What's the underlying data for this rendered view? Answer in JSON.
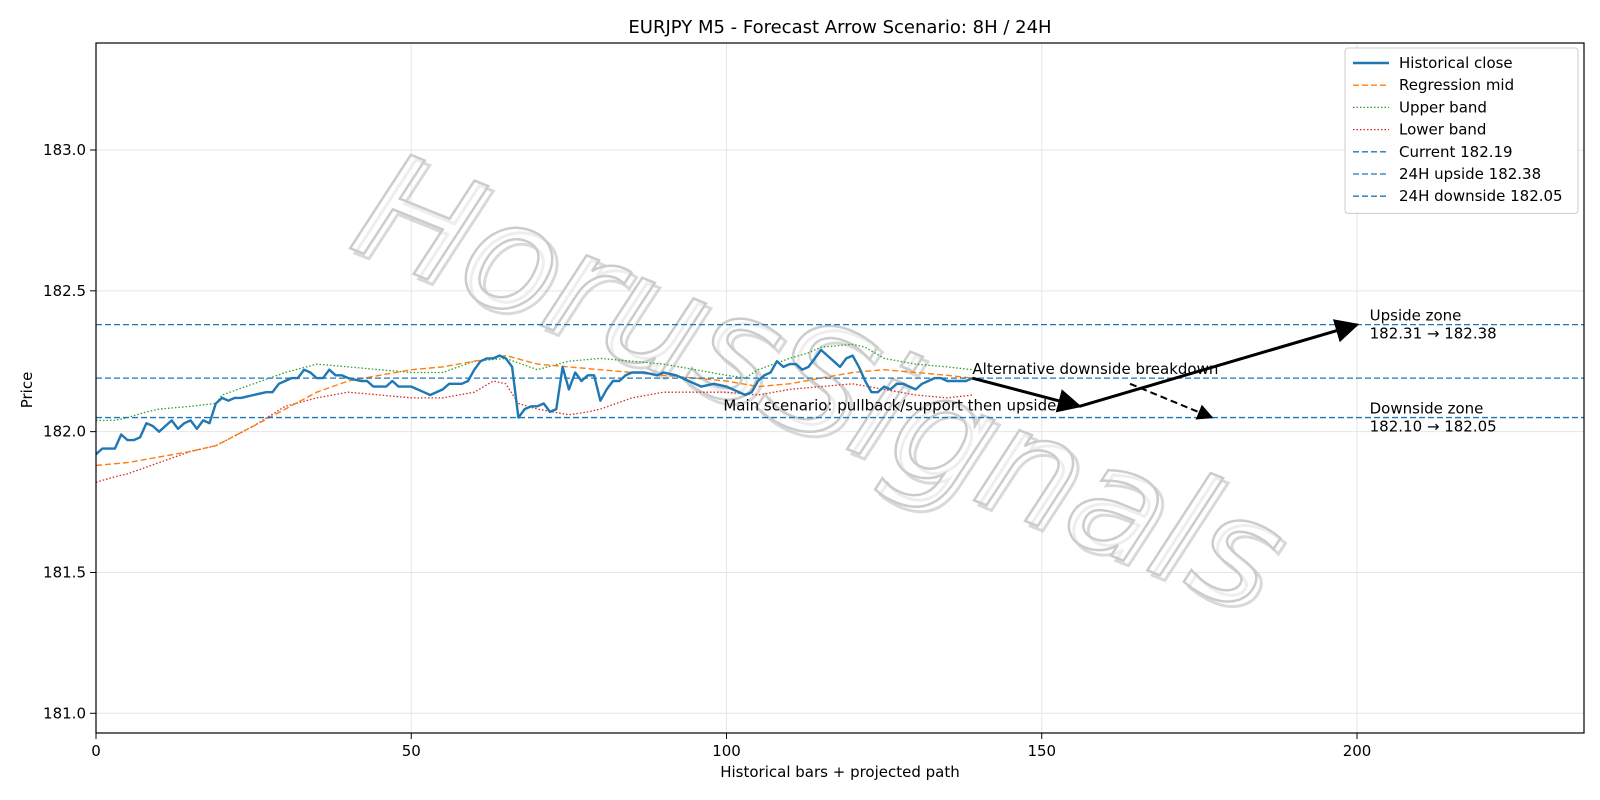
{
  "chart_data": {
    "type": "line",
    "title": "EURJPY M5 - Forecast Arrow Scenario: 8H / 24H",
    "xlabel": "Historical bars + projected path",
    "ylabel": "Price",
    "xlim": [
      0,
      236
    ],
    "ylim": [
      180.93,
      183.38
    ],
    "xticks": [
      "0",
      "50",
      "100",
      "150",
      "200"
    ],
    "yticks": [
      "181.0",
      "181.5",
      "182.0",
      "182.5",
      "183.0"
    ],
    "grid": true,
    "legend_position": "top-right",
    "watermark": "HorusSignals",
    "colors": {
      "historical": "#1f77b4",
      "mid": "#ff7f0e",
      "upper": "#2ca02c",
      "lower": "#d62728",
      "levels": "#1f77b4",
      "arrow": "#000000"
    },
    "series": [
      {
        "name": "Historical close",
        "x": [
          0,
          1,
          3,
          4,
          5,
          6,
          7,
          8,
          9,
          10,
          11,
          12,
          13,
          14,
          15,
          16,
          17,
          18,
          19,
          20,
          21,
          22,
          23,
          25,
          27,
          28,
          29,
          30,
          31,
          32,
          33,
          34,
          35,
          36,
          37,
          38,
          39,
          40,
          42,
          43,
          44,
          46,
          47,
          48,
          50,
          52,
          53,
          55,
          56,
          57,
          58,
          59,
          60,
          61,
          62,
          63,
          64,
          65,
          66,
          67,
          68,
          69,
          70,
          71,
          72,
          73,
          74,
          75,
          76,
          77,
          78,
          79,
          80,
          81,
          82,
          83,
          84,
          85,
          87,
          89,
          90,
          92,
          94,
          96,
          98,
          100,
          102,
          103,
          104,
          105,
          106,
          107,
          108,
          109,
          110,
          111,
          112,
          113,
          114,
          115,
          116,
          117,
          118,
          119,
          120,
          121,
          122,
          123,
          124,
          125,
          126,
          127,
          128,
          129,
          130,
          131,
          132,
          133,
          134,
          135,
          136,
          137,
          138,
          139
        ],
        "y": [
          181.92,
          181.94,
          181.94,
          181.99,
          181.97,
          181.97,
          181.98,
          182.03,
          182.02,
          182.0,
          182.02,
          182.04,
          182.01,
          182.03,
          182.04,
          182.01,
          182.04,
          182.03,
          182.1,
          182.12,
          182.11,
          182.12,
          182.12,
          182.13,
          182.14,
          182.14,
          182.17,
          182.18,
          182.19,
          182.19,
          182.22,
          182.21,
          182.19,
          182.19,
          182.22,
          182.2,
          182.2,
          182.19,
          182.18,
          182.18,
          182.16,
          182.16,
          182.18,
          182.16,
          182.16,
          182.14,
          182.13,
          182.15,
          182.17,
          182.17,
          182.17,
          182.18,
          182.22,
          182.25,
          182.26,
          182.26,
          182.27,
          182.26,
          182.23,
          182.05,
          182.08,
          182.09,
          182.09,
          182.1,
          182.07,
          182.08,
          182.23,
          182.15,
          182.21,
          182.18,
          182.2,
          182.2,
          182.11,
          182.15,
          182.18,
          182.18,
          182.2,
          182.21,
          182.21,
          182.2,
          182.21,
          182.2,
          182.18,
          182.16,
          182.17,
          182.16,
          182.14,
          182.13,
          182.14,
          182.18,
          182.2,
          182.21,
          182.25,
          182.23,
          182.24,
          182.24,
          182.22,
          182.23,
          182.26,
          182.29,
          182.27,
          182.25,
          182.23,
          182.26,
          182.27,
          182.23,
          182.18,
          182.14,
          182.14,
          182.16,
          182.15,
          182.17,
          182.17,
          182.16,
          182.15,
          182.17,
          182.18,
          182.19,
          182.19,
          182.18,
          182.18,
          182.18,
          182.18,
          182.19
        ]
      },
      {
        "name": "Regression mid",
        "x": [
          0,
          5,
          10,
          15,
          19,
          25,
          30,
          35,
          40,
          45,
          50,
          55,
          60,
          65,
          70,
          75,
          80,
          85,
          90,
          95,
          100,
          105,
          110,
          115,
          120,
          125,
          130,
          135,
          139
        ],
        "y": [
          181.88,
          181.89,
          181.91,
          181.93,
          181.95,
          182.02,
          182.08,
          182.14,
          182.18,
          182.2,
          182.22,
          182.23,
          182.25,
          182.27,
          182.24,
          182.23,
          182.22,
          182.21,
          182.2,
          182.19,
          182.18,
          182.16,
          182.17,
          182.19,
          182.21,
          182.22,
          182.21,
          182.2,
          182.19
        ]
      },
      {
        "name": "Upper band",
        "x": [
          0,
          3,
          5,
          8,
          10,
          15,
          19,
          20,
          25,
          30,
          35,
          40,
          45,
          50,
          55,
          60,
          65,
          70,
          75,
          80,
          85,
          90,
          95,
          100,
          103,
          105,
          110,
          113,
          115,
          120,
          122,
          125,
          130,
          135,
          139
        ],
        "y": [
          182.04,
          182.04,
          182.05,
          182.07,
          182.08,
          182.09,
          182.1,
          182.13,
          182.17,
          182.21,
          182.24,
          182.23,
          182.22,
          182.21,
          182.21,
          182.25,
          182.26,
          182.22,
          182.25,
          182.26,
          182.25,
          182.24,
          182.22,
          182.2,
          182.19,
          182.22,
          182.26,
          182.28,
          182.3,
          182.31,
          182.3,
          182.26,
          182.24,
          182.23,
          182.22
        ]
      },
      {
        "name": "Lower band",
        "x": [
          0,
          3,
          5,
          10,
          15,
          19,
          25,
          30,
          35,
          40,
          45,
          50,
          55,
          60,
          63,
          65,
          67,
          70,
          75,
          78,
          80,
          85,
          90,
          95,
          100,
          105,
          110,
          115,
          120,
          125,
          130,
          135,
          139
        ],
        "y": [
          181.82,
          181.84,
          181.85,
          181.89,
          181.93,
          181.95,
          182.02,
          182.09,
          182.12,
          182.14,
          182.13,
          182.12,
          182.12,
          182.14,
          182.18,
          182.17,
          182.1,
          182.08,
          182.06,
          182.07,
          182.08,
          182.12,
          182.14,
          182.14,
          182.14,
          182.13,
          182.15,
          182.16,
          182.17,
          182.15,
          182.13,
          182.12,
          182.13
        ]
      }
    ],
    "levels": [
      {
        "name": "Current 182.19",
        "value": 182.19
      },
      {
        "name": "24H upside 182.38",
        "value": 182.38
      },
      {
        "name": "24H downside 182.05",
        "value": 182.05
      }
    ],
    "main_path": {
      "x": [
        139,
        156,
        200
      ],
      "y": [
        182.19,
        182.09,
        182.38
      ]
    },
    "alt_path": {
      "x": [
        164,
        177
      ],
      "y": [
        182.17,
        182.05
      ]
    },
    "annotations": {
      "alt": "Alternative downside breakdown",
      "main": "Main scenario: pullback/support then upside",
      "upside_zone_title": "Upside zone",
      "upside_zone_range": "182.31 → 182.38",
      "downside_zone_title": "Downside zone",
      "downside_zone_range": "182.10 → 182.05"
    }
  }
}
